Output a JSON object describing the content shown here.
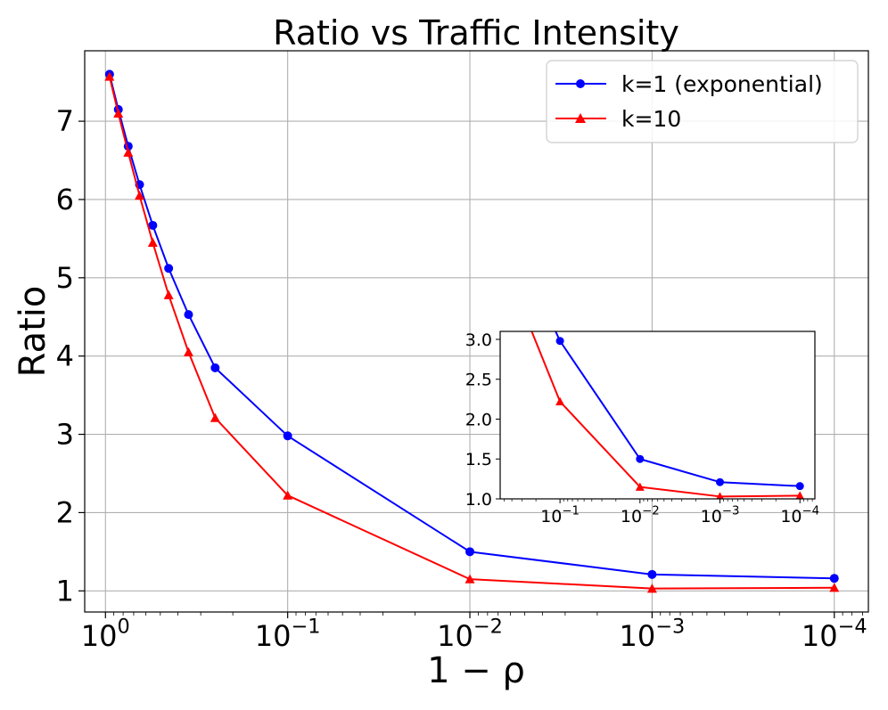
{
  "chart_data": {
    "type": "line",
    "title": "Ratio vs Traffic Intensity",
    "xlabel": "1 − ρ",
    "ylabel": "Ratio",
    "xscale": "log",
    "xaxis_reversed": true,
    "xlim": [
      1.3,
      6.5e-05
    ],
    "ylim": [
      0.73,
      7.9
    ],
    "xticks": [
      {
        "value": 1,
        "base": "10",
        "exp": "0"
      },
      {
        "value": 0.1,
        "base": "10",
        "exp": "−1"
      },
      {
        "value": 0.01,
        "base": "10",
        "exp": "−2"
      },
      {
        "value": 0.001,
        "base": "10",
        "exp": "−3"
      },
      {
        "value": 0.0001,
        "base": "10",
        "exp": "−4"
      }
    ],
    "yticks": [
      {
        "value": 1,
        "label": "1"
      },
      {
        "value": 2,
        "label": "2"
      },
      {
        "value": 3,
        "label": "3"
      },
      {
        "value": 4,
        "label": "4"
      },
      {
        "value": 5,
        "label": "5"
      },
      {
        "value": 6,
        "label": "6"
      },
      {
        "value": 7,
        "label": "7"
      }
    ],
    "grid": true,
    "legend_position": "top-right",
    "x": [
      0.95,
      0.85,
      0.75,
      0.65,
      0.55,
      0.45,
      0.35,
      0.25,
      0.1,
      0.01,
      0.001,
      0.0001
    ],
    "series": [
      {
        "name": "k=1 (exponential)",
        "color": "#0000ff",
        "marker": "circle",
        "values": [
          7.6,
          7.15,
          6.68,
          6.19,
          5.67,
          5.12,
          4.53,
          3.85,
          2.98,
          1.5,
          1.21,
          1.16
        ]
      },
      {
        "name": "k=10",
        "color": "#ff0000",
        "marker": "triangle",
        "values": [
          7.57,
          7.1,
          6.6,
          6.05,
          5.45,
          4.78,
          4.05,
          3.21,
          2.22,
          1.15,
          1.03,
          1.04
        ]
      }
    ],
    "inset": {
      "xlim": [
        0.56,
        6.5e-05
      ],
      "ylim": [
        1.0,
        3.1
      ],
      "xticks": [
        {
          "value": 0.1,
          "base": "10",
          "exp": "−1"
        },
        {
          "value": 0.01,
          "base": "10",
          "exp": "−2"
        },
        {
          "value": 0.001,
          "base": "10",
          "exp": "−3"
        },
        {
          "value": 0.0001,
          "base": "10",
          "exp": "−4"
        }
      ],
      "yticks": [
        {
          "value": 1.0,
          "label": "1.0"
        },
        {
          "value": 1.5,
          "label": "1.5"
        },
        {
          "value": 2.0,
          "label": "2.0"
        },
        {
          "value": 2.5,
          "label": "2.5"
        },
        {
          "value": 3.0,
          "label": "3.0"
        }
      ],
      "grid": false,
      "x": [
        0.1,
        0.01,
        0.001,
        0.0001
      ],
      "series": [
        {
          "name": "k=1 (exponential)",
          "color": "#0000ff",
          "marker": "circle",
          "values": [
            2.98,
            1.5,
            1.21,
            1.16
          ]
        },
        {
          "name": "k=10",
          "color": "#ff0000",
          "marker": "triangle",
          "values": [
            2.22,
            1.15,
            1.03,
            1.04
          ]
        }
      ]
    }
  }
}
